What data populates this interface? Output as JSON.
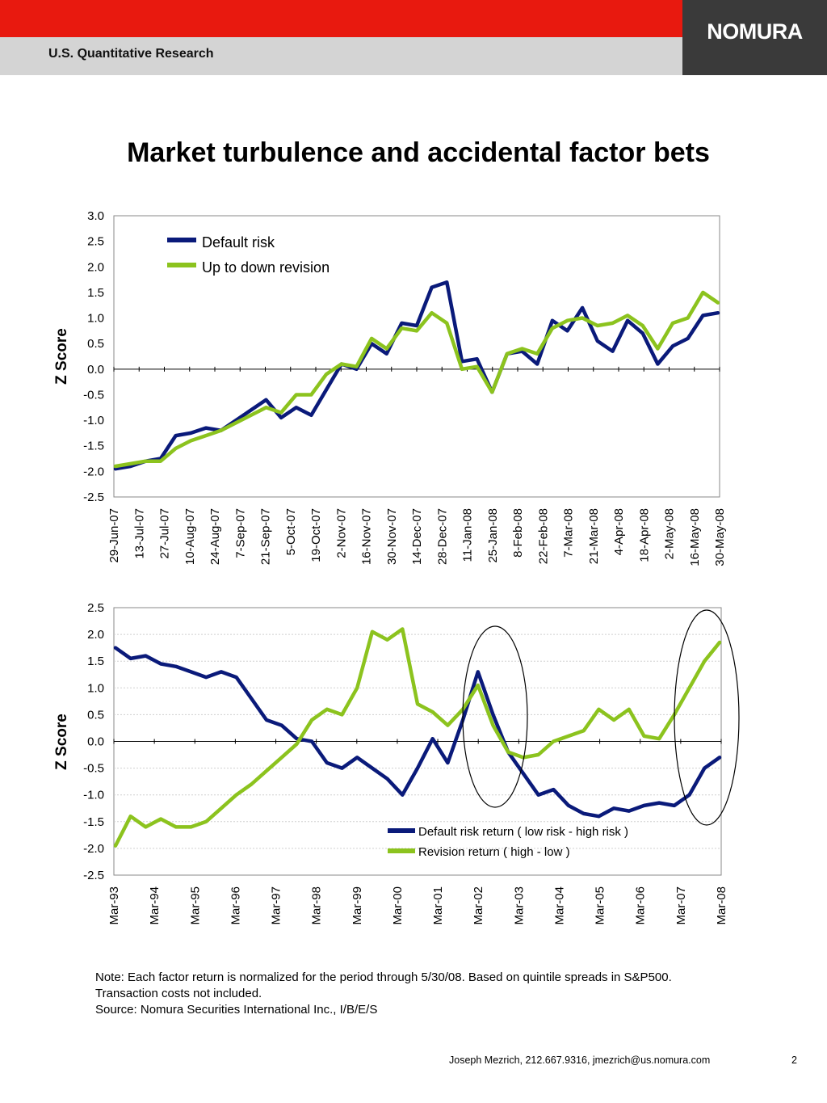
{
  "header": {
    "department": "U.S. Quantitative Research",
    "logo_text": "NOMURA",
    "brand_red": "#e8190f",
    "brand_gray": "#d4d4d4",
    "logo_bg": "#3a3a3a"
  },
  "title": "Market turbulence and accidental factor bets",
  "chart_data": [
    {
      "type": "line",
      "ylabel": "Z Score",
      "ylim": [
        -2.5,
        3.0
      ],
      "yticks": [
        "3.0",
        "2.5",
        "2.0",
        "1.5",
        "1.0",
        "0.5",
        "0.0",
        "-0.5",
        "-1.0",
        "-1.5",
        "-2.0",
        "-2.5"
      ],
      "x_tick_labels": [
        "29-Jun-07",
        "13-Jul-07",
        "27-Jul-07",
        "10-Aug-07",
        "24-Aug-07",
        "7-Sep-07",
        "21-Sep-07",
        "5-Oct-07",
        "19-Oct-07",
        "2-Nov-07",
        "16-Nov-07",
        "30-Nov-07",
        "14-Dec-07",
        "28-Dec-07",
        "11-Jan-08",
        "25-Jan-08",
        "8-Feb-08",
        "22-Feb-08",
        "7-Mar-08",
        "21-Mar-08",
        "4-Apr-08",
        "18-Apr-08",
        "2-May-08",
        "16-May-08",
        "30-May-08"
      ],
      "legend_position": "top-left",
      "series": [
        {
          "name": "Default risk",
          "color": "#0a1a7a",
          "values": [
            -1.95,
            -1.9,
            -1.8,
            -1.75,
            -1.3,
            -1.25,
            -1.15,
            -1.2,
            -1.0,
            -0.8,
            -0.6,
            -0.95,
            -0.75,
            -0.9,
            -0.4,
            0.1,
            0.0,
            0.5,
            0.3,
            0.9,
            0.85,
            1.6,
            1.7,
            0.15,
            0.2,
            -0.45,
            0.3,
            0.35,
            0.1,
            0.95,
            0.75,
            1.2,
            0.55,
            0.35,
            0.95,
            0.7,
            0.1,
            0.45,
            0.6,
            1.05,
            1.1
          ]
        },
        {
          "name": "Up to down revision",
          "color": "#8cc31e",
          "values": [
            -1.9,
            -1.85,
            -1.8,
            -1.8,
            -1.55,
            -1.4,
            -1.3,
            -1.2,
            -1.05,
            -0.9,
            -0.75,
            -0.85,
            -0.5,
            -0.5,
            -0.1,
            0.1,
            0.05,
            0.6,
            0.4,
            0.8,
            0.75,
            1.1,
            0.9,
            0.0,
            0.05,
            -0.45,
            0.3,
            0.4,
            0.3,
            0.8,
            0.95,
            1.0,
            0.85,
            0.9,
            1.05,
            0.85,
            0.4,
            0.9,
            1.0,
            1.5,
            1.3
          ]
        }
      ]
    },
    {
      "type": "line",
      "ylabel": "Z Score",
      "ylim": [
        -2.5,
        2.5
      ],
      "yticks": [
        "2.5",
        "2.0",
        "1.5",
        "1.0",
        "0.5",
        "0.0",
        "-0.5",
        "-1.0",
        "-1.5",
        "-2.0",
        "-2.5"
      ],
      "x_tick_labels": [
        "Mar-93",
        "Mar-94",
        "Mar-95",
        "Mar-96",
        "Mar-97",
        "Mar-98",
        "Mar-99",
        "Mar-00",
        "Mar-01",
        "Mar-02",
        "Mar-03",
        "Mar-04",
        "Mar-05",
        "Mar-06",
        "Mar-07",
        "Mar-08"
      ],
      "legend_position": "bottom-right",
      "series": [
        {
          "name": "Default risk return ( low risk - high risk )",
          "color": "#0a1a7a",
          "values": [
            1.75,
            1.55,
            1.6,
            1.45,
            1.4,
            1.3,
            1.2,
            1.3,
            1.2,
            0.8,
            0.4,
            0.3,
            0.05,
            0.0,
            -0.4,
            -0.5,
            -0.3,
            -0.5,
            -0.7,
            -1.0,
            -0.5,
            0.05,
            -0.4,
            0.4,
            1.3,
            0.5,
            -0.2,
            -0.6,
            -1.0,
            -0.9,
            -1.2,
            -1.35,
            -1.4,
            -1.25,
            -1.3,
            -1.2,
            -1.15,
            -1.2,
            -1.0,
            -0.5,
            -0.3
          ]
        },
        {
          "name": "Revision return ( high - low )",
          "color": "#8cc31e",
          "values": [
            -1.95,
            -1.4,
            -1.6,
            -1.45,
            -1.6,
            -1.6,
            -1.5,
            -1.25,
            -1.0,
            -0.8,
            -0.55,
            -0.3,
            -0.05,
            0.4,
            0.6,
            0.5,
            1.0,
            2.05,
            1.9,
            2.1,
            0.7,
            0.55,
            0.3,
            0.6,
            1.05,
            0.3,
            -0.2,
            -0.3,
            -0.25,
            0.0,
            0.1,
            0.2,
            0.6,
            0.4,
            0.6,
            0.1,
            0.05,
            0.5,
            1.0,
            1.5,
            1.85
          ]
        }
      ]
    }
  ],
  "annotations": {
    "ellipse_1": "Mar-02 to Mar-03 region",
    "ellipse_2": "Mar-07 to Mar-08 region"
  },
  "note": {
    "line1": "Note: Each factor return is normalized for the period through 5/30/08. Based on quintile spreads in S&P500. Transaction costs not included.",
    "line2": "Source: Nomura Securities International Inc., I/B/E/S"
  },
  "footer": {
    "contact": "Joseph Mezrich, 212.667.9316, jmezrich@us.nomura.com",
    "page": "2"
  }
}
